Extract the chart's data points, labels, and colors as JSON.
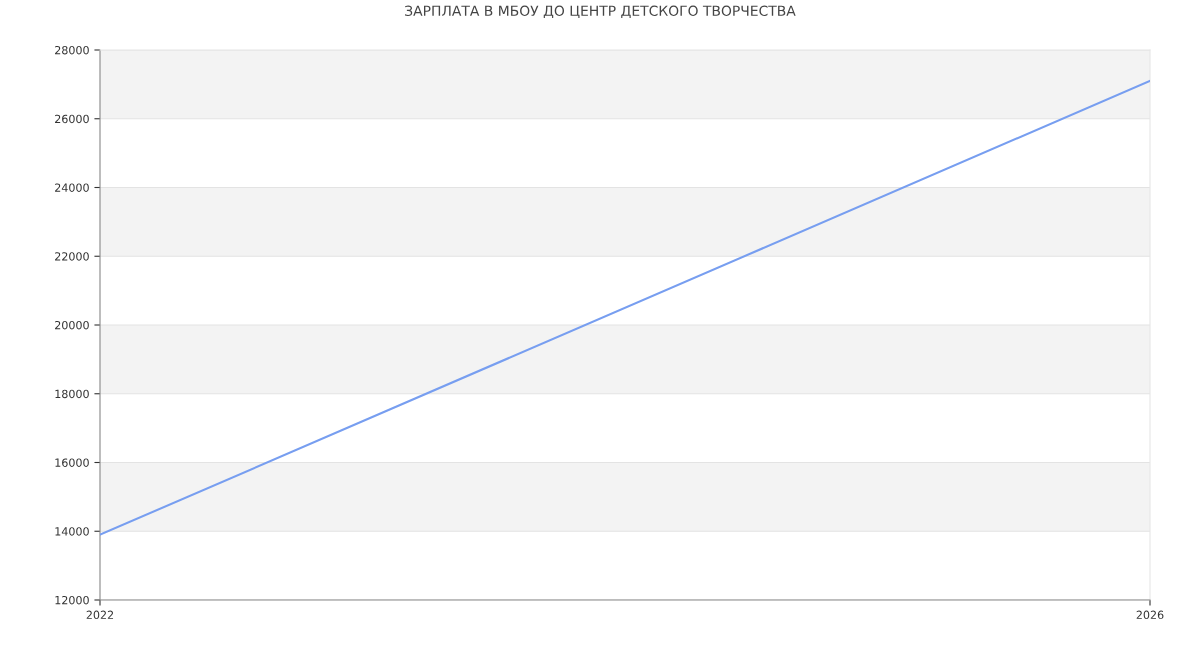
{
  "chart_data": {
    "type": "line",
    "title": "ЗАРПЛАТА В МБОУ ДО ЦЕНТР ДЕТСКОГО ТВОРЧЕСТВА",
    "x": [
      2022,
      2026
    ],
    "series": [
      {
        "color": "#779ef0",
        "values": [
          13900,
          27100
        ]
      }
    ],
    "xlim": [
      2022,
      2026
    ],
    "xticks": [
      2022,
      2026
    ],
    "ylim": [
      12000,
      28000
    ],
    "yticks": [
      12000,
      14000,
      16000,
      18000,
      20000,
      22000,
      24000,
      26000,
      28000
    ],
    "grid": "y",
    "legend": false,
    "marker": "none",
    "line_style": "solid",
    "bands": [
      {
        "axis": "y",
        "from": 14000,
        "to": 16000,
        "color": "#f3f3f3"
      },
      {
        "axis": "y",
        "from": 18000,
        "to": 20000,
        "color": "#f3f3f3"
      },
      {
        "axis": "y",
        "from": 22000,
        "to": 24000,
        "color": "#f3f3f3"
      },
      {
        "axis": "y",
        "from": 26000,
        "to": 28000,
        "color": "#f3f3f3"
      }
    ]
  }
}
